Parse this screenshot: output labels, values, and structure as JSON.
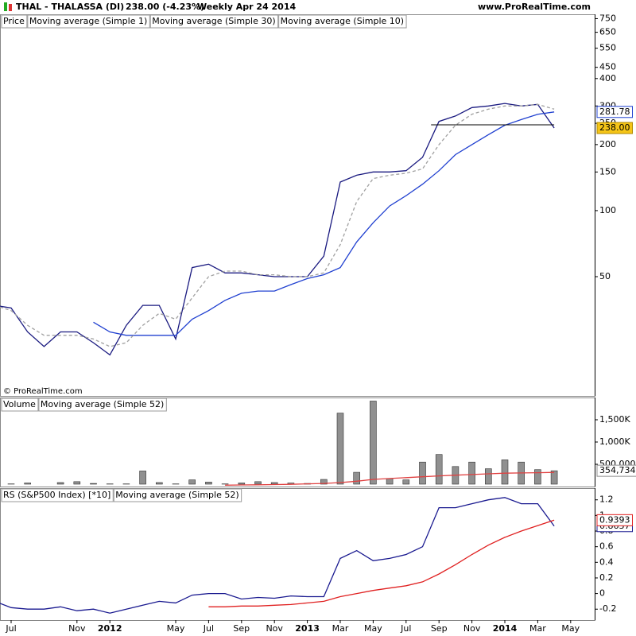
{
  "header": {
    "symbol": "THAL - THALASSA (DI)",
    "quote": "238.00 (-4.23%)",
    "period": "Weekly  Apr 24 2014",
    "site": "www.ProRealTime.com",
    "copyright": "© ProRealTime.com"
  },
  "chart_data": [
    {
      "type": "line",
      "label": "Price",
      "log_scale": true,
      "ylim": [
        14.3,
        785
      ],
      "yticks": [
        50,
        100,
        150,
        200,
        250,
        300,
        400,
        450,
        550,
        650,
        750
      ],
      "hline": 246,
      "series": [
        {
          "name": "Moving average (Simple 1)",
          "color": "#1a1a80",
          "values": [
            37,
            36,
            28,
            24,
            28,
            28,
            25,
            22,
            30,
            37,
            37,
            26,
            55,
            57,
            52,
            52,
            51,
            50,
            50,
            50,
            62,
            135,
            145,
            150,
            150,
            152,
            175,
            255,
            270,
            295,
            300,
            308,
            300,
            305,
            238,
            null
          ],
          "value_labels": [
            null,
            null,
            null,
            null,
            null,
            null,
            null,
            null,
            null,
            null,
            null,
            null,
            null,
            null,
            null,
            null,
            null,
            null,
            null,
            null,
            null,
            null,
            null,
            null,
            null,
            null,
            null,
            null,
            null,
            null,
            null,
            null,
            null,
            null,
            "238.00",
            null
          ]
        },
        {
          "name": "Moving average (Simple 30)",
          "color": "#2040d0",
          "values": [
            null,
            null,
            null,
            null,
            null,
            null,
            31,
            28,
            27,
            27,
            27,
            27,
            32,
            35,
            39,
            42,
            43,
            43,
            46,
            49,
            51,
            55,
            72,
            88,
            105,
            117,
            132,
            152,
            180,
            200,
            222,
            245,
            260,
            275,
            281.78,
            null
          ],
          "value_labels": [
            null,
            null,
            null,
            null,
            null,
            null,
            null,
            null,
            null,
            null,
            null,
            null,
            null,
            null,
            null,
            null,
            null,
            null,
            null,
            null,
            null,
            null,
            null,
            null,
            null,
            null,
            null,
            null,
            null,
            null,
            null,
            null,
            null,
            null,
            "281.78",
            null
          ]
        },
        {
          "name": "Moving average (Simple 10)",
          "color": "#a0a0a0",
          "dashed": true,
          "values": [
            37,
            35,
            30,
            27,
            27,
            27,
            26,
            24,
            25,
            30,
            34,
            32,
            40,
            50,
            53,
            53,
            51,
            51,
            50,
            50,
            52,
            70,
            110,
            140,
            145,
            148,
            155,
            200,
            245,
            275,
            290,
            300,
            300,
            305,
            290,
            null
          ]
        }
      ]
    },
    {
      "type": "bar",
      "label": "Volume",
      "ylim": [
        0,
        2000000
      ],
      "yticks": [
        {
          "value": 500000,
          "label": "500,000"
        },
        {
          "value": 1000000,
          "label": "1,000K"
        },
        {
          "value": 1500000,
          "label": "1,500K"
        }
      ],
      "series": [
        {
          "name": "Volume",
          "color": "#909090",
          "values": [
            50000,
            60000,
            80000,
            40000,
            90000,
            110000,
            70000,
            60000,
            60000,
            350000,
            90000,
            60000,
            150000,
            100000,
            60000,
            80000,
            110000,
            90000,
            80000,
            70000,
            160000,
            1650000,
            320000,
            1920000,
            180000,
            150000,
            550000,
            720000,
            450000,
            550000,
            400000,
            600000,
            550000,
            380000,
            354734,
            null
          ],
          "value_labels": [
            null,
            null,
            null,
            null,
            null,
            null,
            null,
            null,
            null,
            null,
            null,
            null,
            null,
            null,
            null,
            null,
            null,
            null,
            null,
            null,
            null,
            null,
            null,
            null,
            null,
            null,
            null,
            null,
            null,
            null,
            null,
            null,
            null,
            null,
            "354,734",
            null
          ]
        },
        {
          "name": "Moving average (Simple 52)",
          "color": "#e04040",
          "values": [
            null,
            null,
            null,
            null,
            null,
            null,
            null,
            null,
            null,
            null,
            null,
            null,
            null,
            null,
            30000,
            35000,
            40000,
            45000,
            50000,
            60000,
            70000,
            90000,
            120000,
            160000,
            180000,
            200000,
            220000,
            240000,
            255000,
            270000,
            285000,
            300000,
            305000,
            310000,
            318000,
            null
          ]
        }
      ]
    },
    {
      "type": "line",
      "label": "RS (S&P500 Index) [*10]",
      "ylim": [
        -0.34,
        1.35
      ],
      "yticks": [
        1.2,
        1,
        0.8,
        0.6,
        0.4,
        0.2,
        0,
        -0.2
      ],
      "categories": [
        null,
        "Jul",
        null,
        null,
        null,
        "Nov",
        null,
        "2012",
        null,
        null,
        null,
        "May",
        null,
        "Jul",
        null,
        "Sep",
        null,
        "Nov",
        null,
        "2013",
        null,
        "Mar",
        null,
        "May",
        null,
        "Jul",
        null,
        "Sep",
        null,
        "Nov",
        null,
        "2014",
        null,
        "Mar",
        null,
        "May"
      ],
      "series": [
        {
          "name": "RS (S&P500 Index) [*10]",
          "color": "#1a1a90",
          "values": [
            -0.1,
            -0.18,
            -0.2,
            -0.2,
            -0.17,
            -0.22,
            -0.2,
            -0.25,
            -0.2,
            -0.15,
            -0.1,
            -0.12,
            -0.02,
            0,
            0,
            -0.07,
            -0.05,
            -0.06,
            -0.03,
            -0.04,
            -0.04,
            0.45,
            0.55,
            0.42,
            0.45,
            0.5,
            0.6,
            1.1,
            1.1,
            1.15,
            1.2,
            1.23,
            1.15,
            1.15,
            0.8637,
            null
          ],
          "value_labels": [
            null,
            null,
            null,
            null,
            null,
            null,
            null,
            null,
            null,
            null,
            null,
            null,
            null,
            null,
            null,
            null,
            null,
            null,
            null,
            null,
            null,
            null,
            null,
            null,
            null,
            null,
            null,
            null,
            null,
            null,
            null,
            null,
            null,
            null,
            "0.8637",
            null
          ]
        },
        {
          "name": "Moving average (Simple 52)",
          "color": "#e02020",
          "values": [
            null,
            null,
            null,
            null,
            null,
            null,
            null,
            null,
            null,
            null,
            null,
            null,
            null,
            -0.17,
            -0.17,
            -0.16,
            -0.16,
            -0.15,
            -0.14,
            -0.12,
            -0.1,
            -0.04,
            0,
            0.04,
            0.07,
            0.1,
            0.15,
            0.25,
            0.37,
            0.5,
            0.62,
            0.72,
            0.8,
            0.87,
            0.9393,
            null
          ],
          "value_labels": [
            null,
            null,
            null,
            null,
            null,
            null,
            null,
            null,
            null,
            null,
            null,
            null,
            null,
            null,
            null,
            null,
            null,
            null,
            null,
            null,
            null,
            null,
            null,
            null,
            null,
            null,
            null,
            null,
            null,
            null,
            null,
            null,
            null,
            null,
            "0.9393",
            null
          ]
        }
      ]
    }
  ]
}
